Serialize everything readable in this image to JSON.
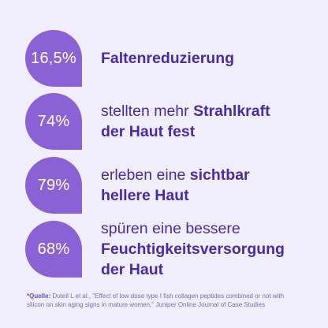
{
  "stats": [
    {
      "value": "16,5%",
      "regular": "",
      "bold": "Faltenreduzierung",
      "bold_suffix": ""
    },
    {
      "value": "74%",
      "regular": "stellten mehr ",
      "bold": "Strahlkraft",
      "bold_suffix": "der Haut fest"
    },
    {
      "value": "79%",
      "regular": "erleben eine ",
      "bold": "sichtbar",
      "bold_suffix": "hellere Haut"
    },
    {
      "value": "68%",
      "regular": "spüren eine bessere",
      "bold": "Feuchtigkeitsversorgung",
      "bold_suffix": "der Haut"
    }
  ],
  "footnote": {
    "label": "*Quelle:",
    "text": " Duteil L et al., \"Effect of low dose type I fish collagen peptides combined or not with silicon on skin aging signs in mature women,\" Juniper Online Journal of Case Studies"
  },
  "colors": {
    "background": "#f1eefc",
    "bubble": "#8a62d6",
    "text": "#4a2aa7"
  }
}
